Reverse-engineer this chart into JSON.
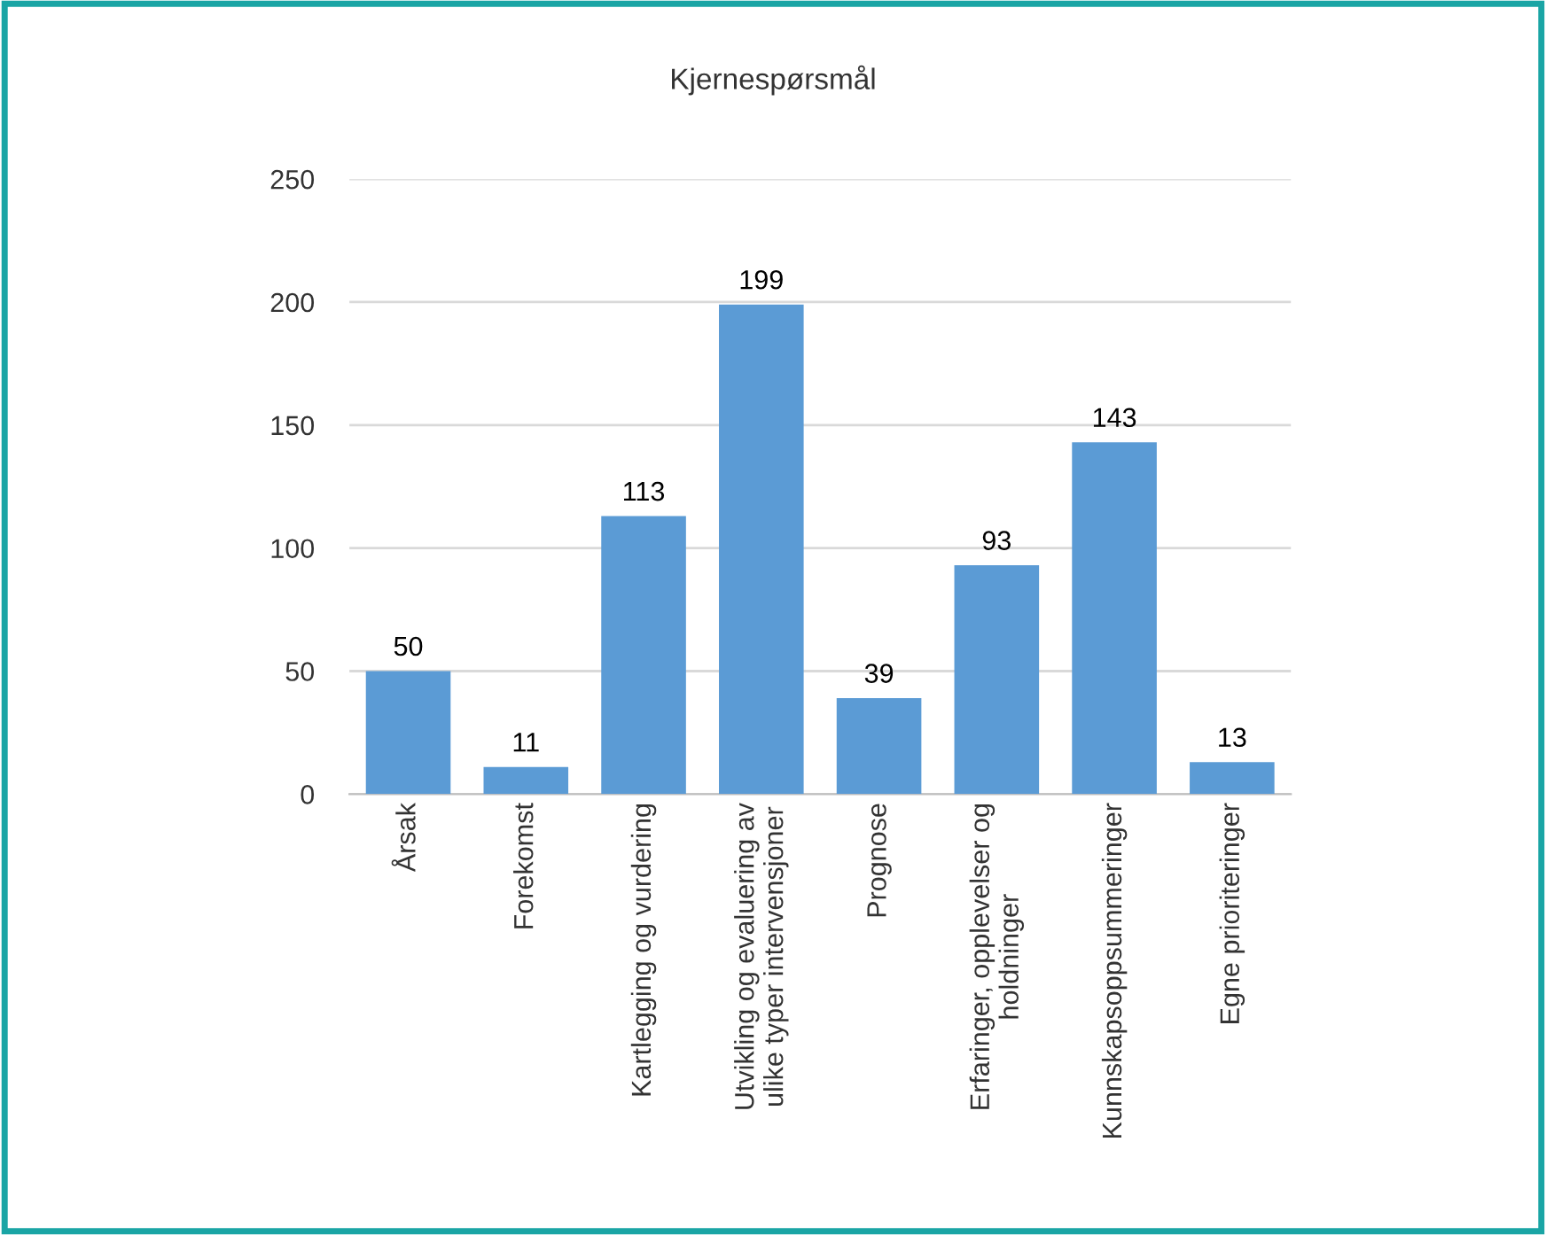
{
  "chart_data": {
    "type": "bar",
    "title": "Kjernespørsmål",
    "categories": [
      "Årsak",
      "Forekomst",
      "Kartlegging og vurdering",
      "Utvikling og evaluering av\nulike typer intervensjoner",
      "Prognose",
      "Erfaringer, opplevelser og\nholdninger",
      "Kunnskapsoppsummeringer",
      "Egne prioriteringer"
    ],
    "values": [
      50,
      11,
      113,
      199,
      39,
      93,
      143,
      13
    ],
    "color": "#5b9bd5",
    "ylim": [
      0,
      250
    ],
    "yticks": [
      0,
      50,
      100,
      150,
      200,
      250
    ],
    "grid": "y",
    "data_labels": true
  }
}
